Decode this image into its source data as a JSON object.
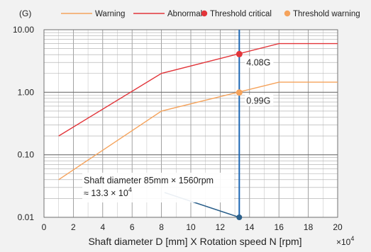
{
  "chart_data": {
    "type": "line",
    "y_unit": "(G)",
    "xlabel": "Shaft diameter D [mm] X Rotation speed N [rpm]",
    "x_multiplier": "×10⁴",
    "x_multiplier_base": "×10",
    "x_multiplier_exp": "4",
    "xlim": [
      0,
      20
    ],
    "ylim": [
      0.01,
      10
    ],
    "yscale": "log",
    "grid": true,
    "legend_position": "top",
    "x_ticks": [
      "0",
      "2",
      "4",
      "6",
      "8",
      "10",
      "12",
      "14",
      "16",
      "18",
      "20"
    ],
    "y_ticks": [
      "10.00",
      "1.00",
      "0.10",
      "0.01"
    ],
    "series": [
      {
        "name": "Warning",
        "color": "#f5a35c",
        "x": [
          1,
          8,
          16,
          20
        ],
        "y": [
          0.04,
          0.5,
          1.45,
          1.45
        ]
      },
      {
        "name": "Abnormal",
        "color": "#e2353a",
        "x": [
          1,
          8,
          16,
          20
        ],
        "y": [
          0.2,
          2.0,
          6.0,
          6.0
        ]
      }
    ],
    "markers": [
      {
        "name": "Threshold critical",
        "color": "#e2353a",
        "x": 13.3,
        "y": 4.08,
        "label": "4.08G"
      },
      {
        "name": "Threshold warning",
        "color": "#f5a35c",
        "x": 13.3,
        "y": 0.99,
        "label": "0.99G"
      }
    ],
    "annotation": {
      "line1": "Shaft diameter 85mm × 1560rpm",
      "line2_prefix": "≈ 13.3 × 10",
      "line2_exp": "4",
      "x": 13.3,
      "y": 0.01,
      "vline_color": "#1d67b4",
      "pointer_color": "#2a5f8a"
    }
  }
}
